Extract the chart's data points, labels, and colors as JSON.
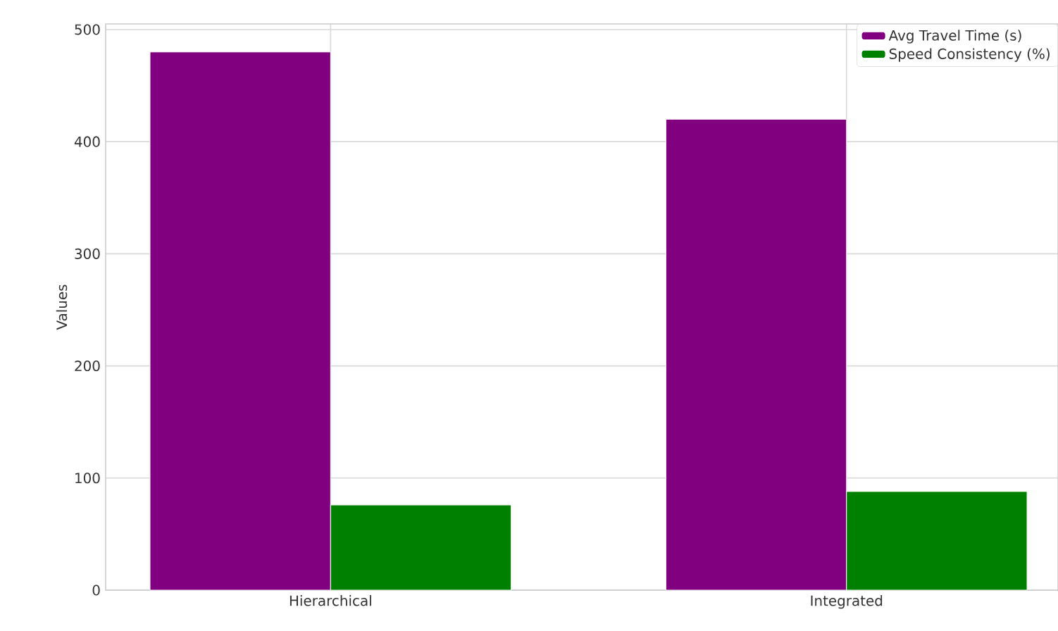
{
  "chart_data": {
    "type": "bar",
    "ylabel": "Values",
    "categories": [
      "Hierarchical",
      "Integrated"
    ],
    "series": [
      {
        "name": "Avg Travel Time (s)",
        "color": "#800080",
        "values": [
          480,
          420
        ]
      },
      {
        "name": "Speed Consistency (%)",
        "color": "#008000",
        "values": [
          76,
          88
        ]
      }
    ],
    "ylim": [
      0,
      505
    ],
    "yticks": [
      0,
      100,
      200,
      300,
      400,
      500
    ],
    "grid": true,
    "legend": "top right"
  }
}
